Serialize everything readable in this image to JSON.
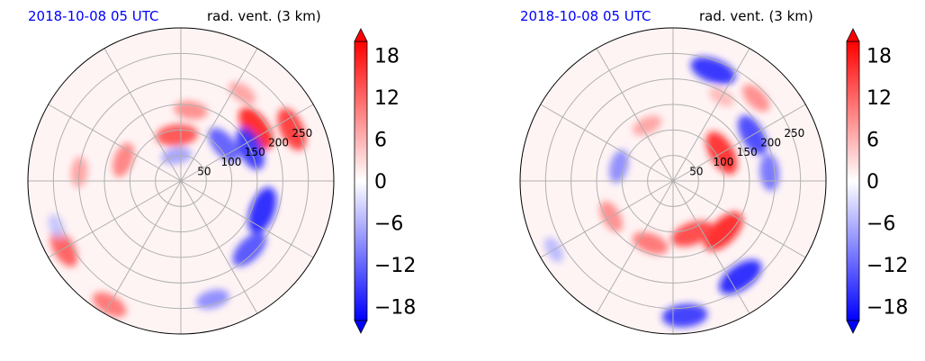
{
  "chart_data": [
    {
      "type": "heatmap",
      "projection": "polar",
      "title_left": "2018-10-08 05 UTC",
      "title_right": "rad. vent. (3 km)",
      "radial_ticks": [
        "50",
        "100",
        "150",
        "200",
        "250"
      ],
      "radial_values": [
        50,
        100,
        150,
        200,
        250
      ],
      "rmax": 300,
      "grid": true,
      "angular_gridlines_deg": [
        0,
        30,
        60,
        90,
        120,
        150,
        180,
        210,
        240,
        270,
        300,
        330
      ],
      "colorbar": {
        "ticks": [
          "18",
          "12",
          "6",
          "0",
          "−6",
          "−12",
          "−18"
        ],
        "tick_values": [
          18,
          12,
          6,
          0,
          -6,
          -12,
          -18
        ],
        "range": [
          -20,
          20
        ],
        "cmap": "bwr",
        "extend": "both"
      },
      "features": [
        {
          "theta_deg": 35,
          "r": 180,
          "value": 19
        },
        {
          "theta_deg": 25,
          "r": 240,
          "value": 17
        },
        {
          "theta_deg": 55,
          "r": 210,
          "value": 8
        },
        {
          "theta_deg": 82,
          "r": 140,
          "value": 10
        },
        {
          "theta_deg": 95,
          "r": 90,
          "value": 15
        },
        {
          "theta_deg": 160,
          "r": 120,
          "value": 11
        },
        {
          "theta_deg": 175,
          "r": 200,
          "value": 8
        },
        {
          "theta_deg": 210,
          "r": 265,
          "value": 14
        },
        {
          "theta_deg": 240,
          "r": 280,
          "value": 12
        },
        {
          "theta_deg": 40,
          "r": 110,
          "value": -14
        },
        {
          "theta_deg": 25,
          "r": 150,
          "value": -17
        },
        {
          "theta_deg": 100,
          "r": 50,
          "value": -8
        },
        {
          "theta_deg": -20,
          "r": 170,
          "value": -19
        },
        {
          "theta_deg": -45,
          "r": 190,
          "value": -15
        },
        {
          "theta_deg": -75,
          "r": 240,
          "value": -10
        },
        {
          "theta_deg": 200,
          "r": 260,
          "value": -5
        }
      ]
    },
    {
      "type": "heatmap",
      "projection": "polar",
      "title_left": "2018-10-08 05 UTC",
      "title_right": "rad. vent. (3 km)",
      "radial_ticks": [
        "50",
        "100",
        "150",
        "200",
        "250"
      ],
      "radial_values": [
        50,
        100,
        150,
        200,
        250
      ],
      "rmax": 300,
      "grid": true,
      "angular_gridlines_deg": [
        0,
        30,
        60,
        90,
        120,
        150,
        180,
        210,
        240,
        270,
        300,
        330
      ],
      "colorbar": {
        "ticks": [
          "18",
          "12",
          "6",
          "0",
          "−6",
          "−12",
          "−18"
        ],
        "tick_values": [
          18,
          12,
          6,
          0,
          -6,
          -12,
          -18
        ],
        "range": [
          -20,
          20
        ],
        "cmap": "bwr",
        "extend": "both"
      },
      "features": [
        {
          "theta_deg": -45,
          "r": 140,
          "value": 19
        },
        {
          "theta_deg": -70,
          "r": 110,
          "value": 16
        },
        {
          "theta_deg": -110,
          "r": 130,
          "value": 12
        },
        {
          "theta_deg": -150,
          "r": 140,
          "value": 10
        },
        {
          "theta_deg": 30,
          "r": 110,
          "value": 18
        },
        {
          "theta_deg": 45,
          "r": 230,
          "value": 10
        },
        {
          "theta_deg": 60,
          "r": 190,
          "value": 6
        },
        {
          "theta_deg": 115,
          "r": 120,
          "value": 8
        },
        {
          "theta_deg": 70,
          "r": 230,
          "value": -18
        },
        {
          "theta_deg": 30,
          "r": 180,
          "value": -16
        },
        {
          "theta_deg": 5,
          "r": 190,
          "value": -12
        },
        {
          "theta_deg": -55,
          "r": 230,
          "value": -19
        },
        {
          "theta_deg": -85,
          "r": 265,
          "value": -17
        },
        {
          "theta_deg": 165,
          "r": 110,
          "value": -10
        },
        {
          "theta_deg": -150,
          "r": 270,
          "value": -6
        }
      ]
    }
  ]
}
